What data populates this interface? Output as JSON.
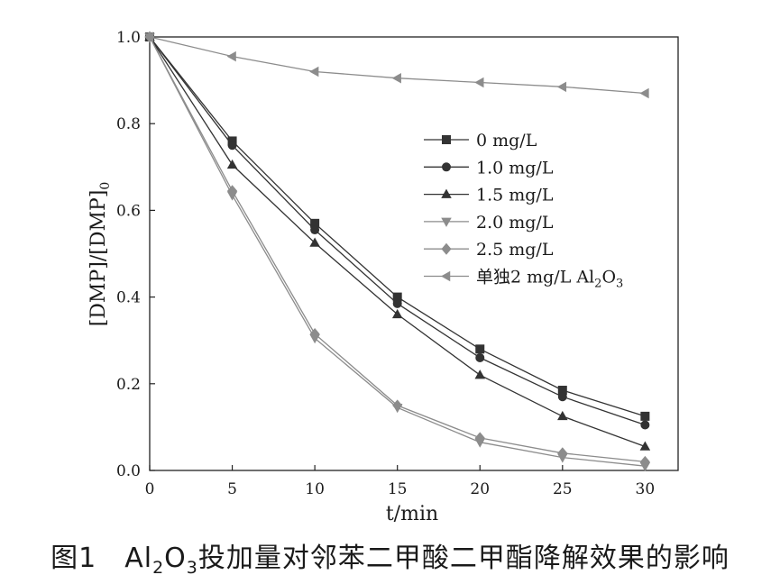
{
  "chart_data": {
    "type": "line",
    "xlabel": "t/min",
    "ylabel": "[DMP]/[DMP]",
    "ylabel_sub": "0",
    "xlim": [
      0,
      32
    ],
    "ylim": [
      0,
      1.0
    ],
    "xticks": [
      "0",
      "5",
      "10",
      "15",
      "20",
      "25",
      "30"
    ],
    "yticks": [
      "0.0",
      "0.2",
      "0.4",
      "0.6",
      "0.8",
      "1.0"
    ],
    "x": [
      0,
      5,
      10,
      15,
      20,
      25,
      30
    ],
    "legend_position": "right-middle",
    "series": [
      {
        "name": "0 mg/L",
        "marker": "square",
        "values": [
          1.0,
          0.76,
          0.57,
          0.4,
          0.28,
          0.185,
          0.125
        ]
      },
      {
        "name": "1.0 mg/L",
        "marker": "circle",
        "values": [
          1.0,
          0.75,
          0.555,
          0.385,
          0.26,
          0.17,
          0.105
        ]
      },
      {
        "name": "1.5 mg/L",
        "marker": "triangle-up",
        "values": [
          1.0,
          0.705,
          0.525,
          0.36,
          0.22,
          0.125,
          0.055
        ]
      },
      {
        "name": "2.0 mg/L",
        "marker": "triangle-down",
        "values": [
          1.0,
          0.635,
          0.305,
          0.145,
          0.065,
          0.03,
          0.01
        ]
      },
      {
        "name": "2.5 mg/L",
        "marker": "diamond",
        "values": [
          1.0,
          0.645,
          0.315,
          0.15,
          0.075,
          0.04,
          0.02
        ]
      },
      {
        "name": "单独2 mg/L Al",
        "name_parts": [
          "单独2 mg/L Al",
          "2",
          "O",
          "3"
        ],
        "marker": "triangle-left",
        "values": [
          1.0,
          0.955,
          0.92,
          0.905,
          0.895,
          0.885,
          0.87
        ]
      }
    ],
    "colors": {
      "dark": "#333333",
      "light": "#8c8c8c"
    }
  },
  "caption": {
    "prefix": "图1　Al",
    "sub1": "2",
    "mid": "O",
    "sub2": "3",
    "suffix": "投加量对邻苯二甲酸二甲酯降解效果的影响"
  }
}
